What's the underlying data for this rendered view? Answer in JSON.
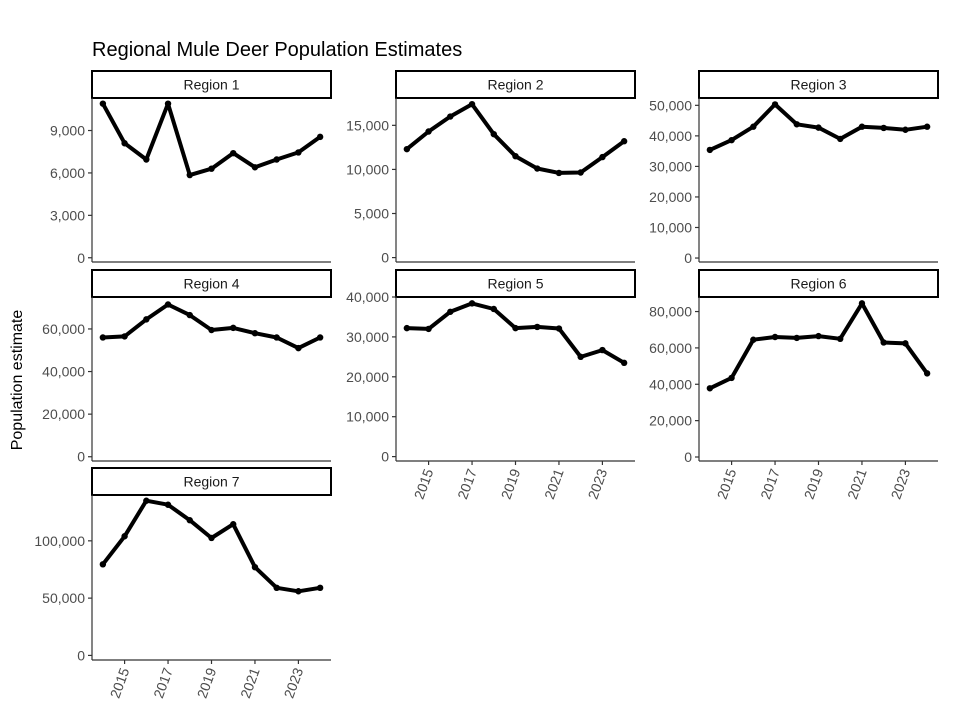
{
  "chart_data": {
    "type": "line",
    "title": "Regional Mule Deer Population Estimates",
    "xlabel": "",
    "ylabel": "Population estimate",
    "x": [
      2014,
      2015,
      2016,
      2017,
      2018,
      2019,
      2020,
      2021,
      2022,
      2023,
      2024
    ],
    "x_tick_labels": [
      "2015",
      "2017",
      "2019",
      "2021",
      "2023"
    ],
    "x_ticks": [
      2015,
      2017,
      2019,
      2021,
      2023
    ],
    "xlim": [
      2013.5,
      2024.5
    ],
    "grid": false,
    "legend": "none",
    "panels": [
      {
        "name": "Region 1",
        "values": [
          10900,
          8100,
          6950,
          10900,
          5850,
          6300,
          7400,
          6400,
          6950,
          7450,
          8550
        ],
        "ylim": [
          -300,
          11300
        ],
        "y_ticks": [
          0,
          3000,
          6000,
          9000
        ],
        "y_tick_labels": [
          "0",
          "3,000",
          "6,000",
          "9,000"
        ],
        "x_axis_shown": false
      },
      {
        "name": "Region 2",
        "values": [
          12300,
          14300,
          16000,
          17400,
          14000,
          11500,
          10100,
          9600,
          9650,
          11400,
          13200
        ],
        "ylim": [
          -500,
          18100
        ],
        "y_ticks": [
          0,
          5000,
          10000,
          15000
        ],
        "y_tick_labels": [
          "0",
          "5,000",
          "10,000",
          "15,000"
        ],
        "x_axis_shown": false
      },
      {
        "name": "Region 3",
        "values": [
          35400,
          38600,
          43000,
          50300,
          43800,
          42700,
          39000,
          43000,
          42600,
          42000,
          43000
        ],
        "ylim": [
          -1300,
          52400
        ],
        "y_ticks": [
          0,
          10000,
          20000,
          30000,
          40000,
          50000
        ],
        "y_tick_labels": [
          "0",
          "10,000",
          "20,000",
          "30,000",
          "40,000",
          "50,000"
        ],
        "x_axis_shown": false
      },
      {
        "name": "Region 4",
        "values": [
          56000,
          56500,
          64500,
          71500,
          66500,
          59500,
          60500,
          58000,
          56000,
          51000,
          56000
        ],
        "ylim": [
          -2000,
          75000
        ],
        "y_ticks": [
          0,
          20000,
          40000,
          60000
        ],
        "y_tick_labels": [
          "0",
          "20,000",
          "40,000",
          "60,000"
        ],
        "x_axis_shown": false
      },
      {
        "name": "Region 5",
        "values": [
          32200,
          32000,
          36300,
          38400,
          37000,
          32200,
          32500,
          32100,
          25000,
          26700,
          23500
        ],
        "ylim": [
          -1100,
          40000
        ],
        "y_ticks": [
          0,
          10000,
          20000,
          30000,
          40000
        ],
        "y_tick_labels": [
          "0",
          "10,000",
          "20,000",
          "30,000",
          "40,000"
        ],
        "x_axis_shown": true
      },
      {
        "name": "Region 6",
        "values": [
          37800,
          43500,
          64500,
          66000,
          65500,
          66500,
          65000,
          84500,
          63000,
          62500,
          46000
        ],
        "ylim": [
          -2200,
          88000
        ],
        "y_ticks": [
          0,
          20000,
          40000,
          60000,
          80000
        ],
        "y_tick_labels": [
          "0",
          "20,000",
          "40,000",
          "60,000",
          "80,000"
        ],
        "x_axis_shown": true
      },
      {
        "name": "Region 7",
        "values": [
          79500,
          104000,
          135000,
          131500,
          118000,
          102500,
          114500,
          77000,
          59000,
          56000,
          59000
        ],
        "ylim": [
          -4000,
          140000
        ],
        "y_ticks": [
          0,
          50000,
          100000
        ],
        "y_tick_labels": [
          "0",
          "50,000",
          "100,000"
        ],
        "x_axis_shown": true
      }
    ]
  },
  "colors": {
    "line": "#000000",
    "axis": "#333333",
    "strip_border": "#000000",
    "strip_fill": "#ffffff",
    "tick_text": "#4d4d4d",
    "background": "#ffffff"
  }
}
